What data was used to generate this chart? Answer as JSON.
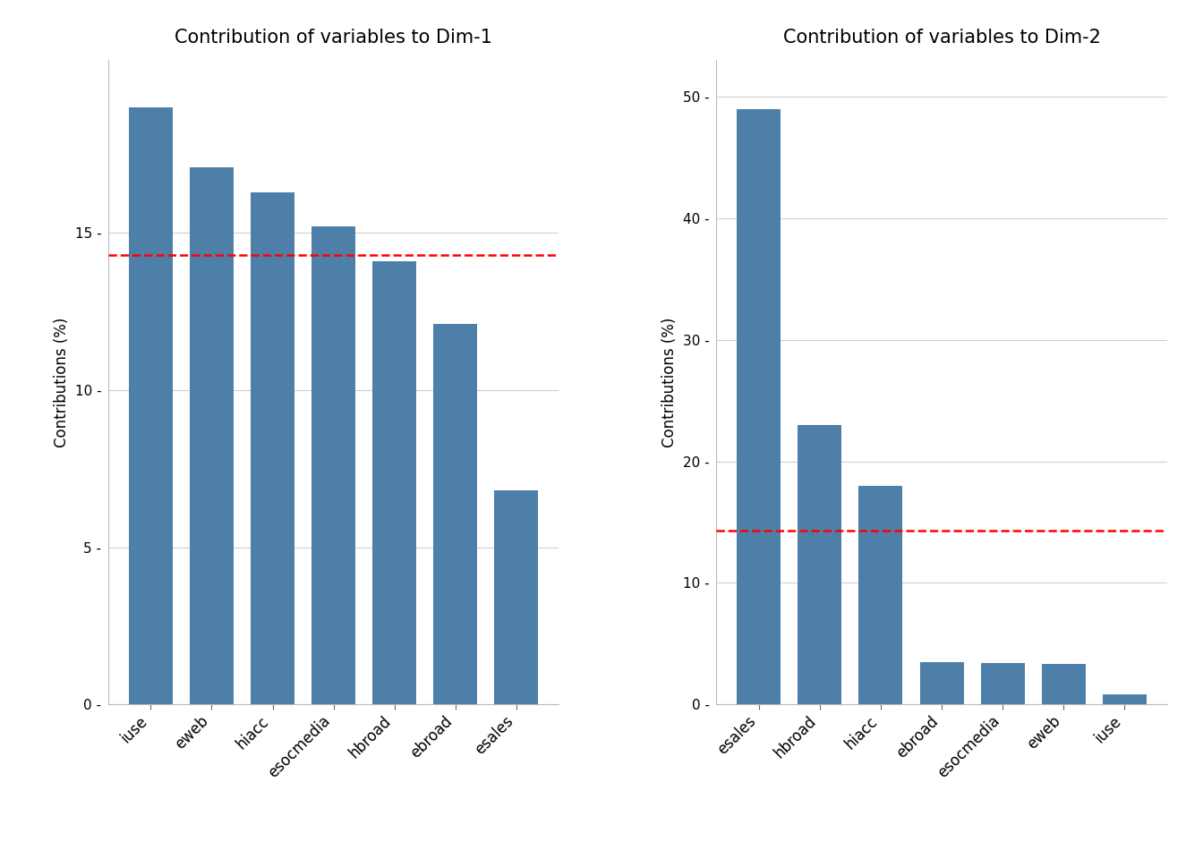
{
  "dim1": {
    "title": "Contribution of variables to Dim-1",
    "categories": [
      "iuse",
      "eweb",
      "hiacc",
      "esocmedia",
      "hbroad",
      "ebroad",
      "esales"
    ],
    "values": [
      19.0,
      17.1,
      16.3,
      15.2,
      14.1,
      12.1,
      6.8
    ],
    "dashed_line": 14.29,
    "ylim": [
      0,
      20.5
    ],
    "yticks": [
      0,
      5,
      10,
      15
    ],
    "ylabel": "Contributions (%)"
  },
  "dim2": {
    "title": "Contribution of variables to Dim-2",
    "categories": [
      "esales",
      "hbroad",
      "hiacc",
      "ebroad",
      "esocmedia",
      "eweb",
      "iuse"
    ],
    "values": [
      49.0,
      23.0,
      18.0,
      3.5,
      3.4,
      3.3,
      0.8
    ],
    "dashed_line": 14.29,
    "ylim": [
      0,
      53.0
    ],
    "yticks": [
      0,
      10,
      20,
      30,
      40,
      50
    ],
    "ylabel": "Contributions (%)"
  },
  "bar_color": "#4d7fa8",
  "dashed_color": "red",
  "background_color": "#ffffff",
  "grid_color": "#d0d0d0",
  "title_fontsize": 15,
  "label_fontsize": 12,
  "tick_fontsize": 11,
  "xtick_fontsize": 12
}
